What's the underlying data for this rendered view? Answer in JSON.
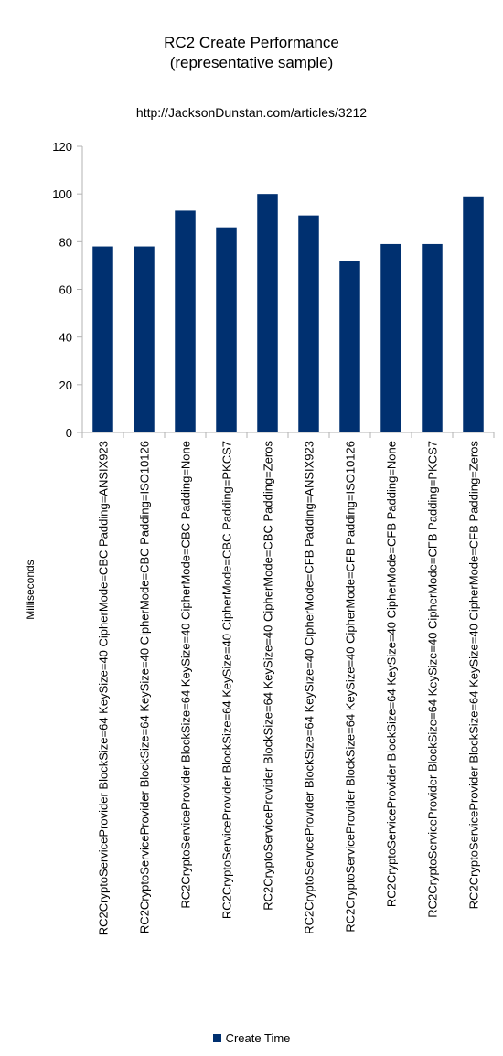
{
  "chart_data": {
    "type": "bar",
    "title": "RC2 Create Performance",
    "subtitle": "(representative sample)",
    "url": "http://JacksonDunstan.com/articles/3212",
    "xlabel": "",
    "ylabel": "Milliseconds",
    "ylim": [
      0,
      120
    ],
    "yticks": [
      0,
      20,
      40,
      60,
      80,
      100,
      120
    ],
    "grid": false,
    "legend_position": "bottom",
    "bar_color": "#003070",
    "categories": [
      "RC2CryptoServiceProvider BlockSize=64 KeySize=40 CipherMode=CBC Padding=ANSIX923",
      "RC2CryptoServiceProvider BlockSize=64 KeySize=40 CipherMode=CBC Padding=ISO10126",
      "RC2CryptoServiceProvider BlockSize=64 KeySize=40 CipherMode=CBC Padding=None",
      "RC2CryptoServiceProvider BlockSize=64 KeySize=40 CipherMode=CBC Padding=PKCS7",
      "RC2CryptoServiceProvider BlockSize=64 KeySize=40 CipherMode=CBC Padding=Zeros",
      "RC2CryptoServiceProvider BlockSize=64 KeySize=40 CipherMode=CFB Padding=ANSIX923",
      "RC2CryptoServiceProvider BlockSize=64 KeySize=40 CipherMode=CFB Padding=ISO10126",
      "RC2CryptoServiceProvider BlockSize=64 KeySize=40 CipherMode=CFB Padding=None",
      "RC2CryptoServiceProvider BlockSize=64 KeySize=40 CipherMode=CFB Padding=PKCS7",
      "RC2CryptoServiceProvider BlockSize=64 KeySize=40 CipherMode=CFB Padding=Zeros"
    ],
    "series": [
      {
        "name": "Create Time",
        "values": [
          78,
          78,
          93,
          86,
          100,
          91,
          72,
          79,
          79,
          99
        ]
      }
    ]
  }
}
